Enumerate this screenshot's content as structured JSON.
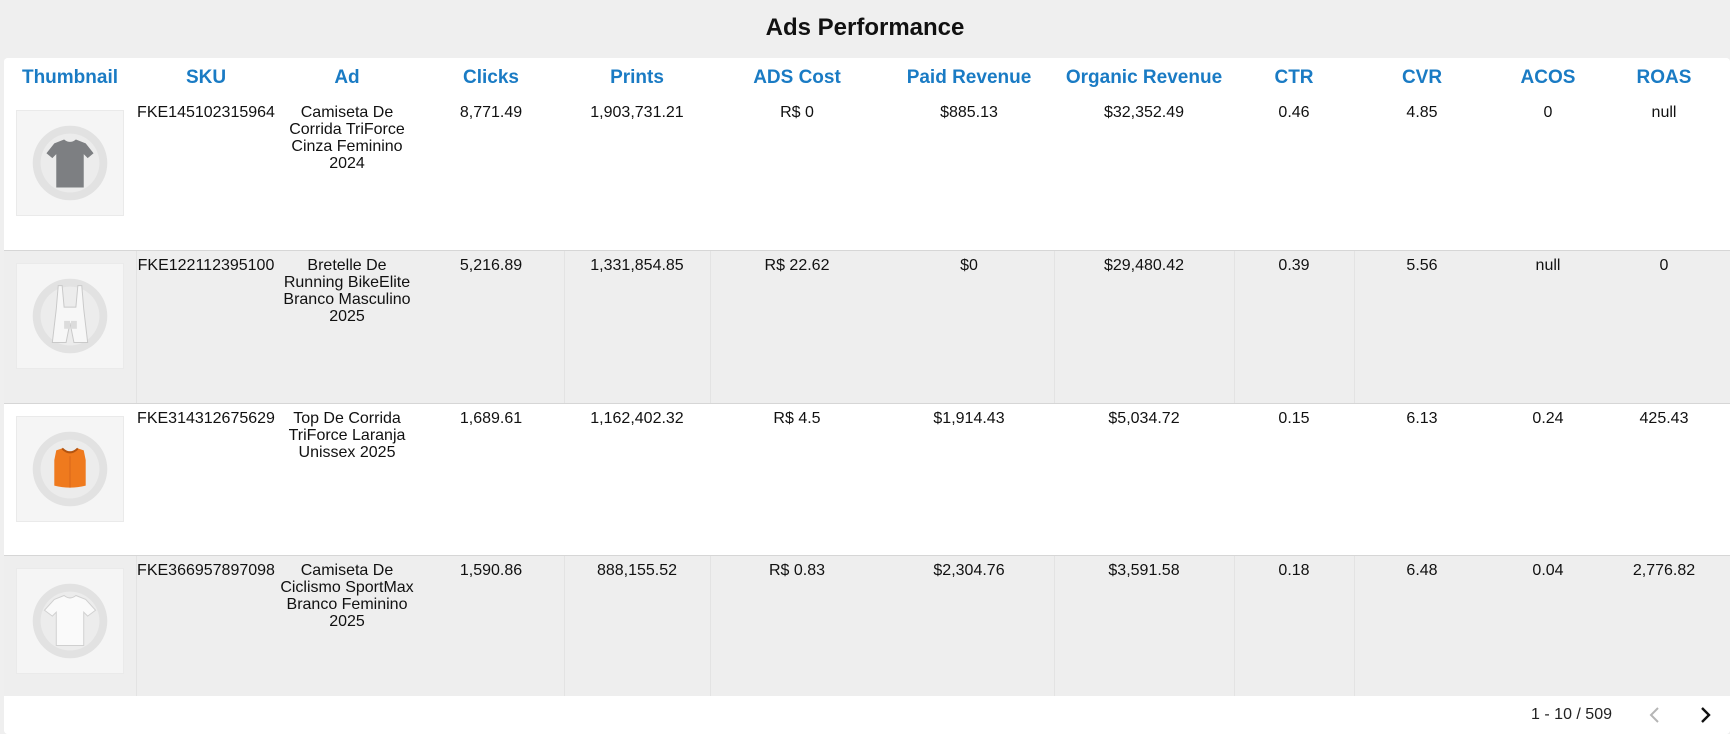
{
  "page": {
    "title": "Ads Performance"
  },
  "table": {
    "columns": [
      "Thumbnail",
      "SKU",
      "Ad",
      "Clicks",
      "Prints",
      "ADS Cost",
      "Paid Revenue",
      "Organic Revenue",
      "CTR",
      "CVR",
      "ACOS",
      "ROAS"
    ],
    "rows": [
      {
        "thumbnail": "gray-tshirt-icon",
        "sku": "FKE145102315964",
        "ad": "Camiseta De Corrida TriForce Cinza Feminino 2024",
        "clicks": "8,771.49",
        "prints": "1,903,731.21",
        "ads_cost": "R$ 0",
        "paid_revenue": "$885.13",
        "organic_revenue": "$32,352.49",
        "ctr": "0.46",
        "cvr": "4.85",
        "acos": "0",
        "roas": "null"
      },
      {
        "thumbnail": "white-bib-shorts-icon",
        "sku": "FKE122112395100",
        "ad": "Bretelle De Running BikeElite Branco Masculino 2025",
        "clicks": "5,216.89",
        "prints": "1,331,854.85",
        "ads_cost": "R$ 22.62",
        "paid_revenue": "$0",
        "organic_revenue": "$29,480.42",
        "ctr": "0.39",
        "cvr": "5.56",
        "acos": "null",
        "roas": "0"
      },
      {
        "thumbnail": "orange-top-icon",
        "sku": "FKE314312675629",
        "ad": "Top De Corrida TriForce Laranja Unissex 2025",
        "clicks": "1,689.61",
        "prints": "1,162,402.32",
        "ads_cost": "R$ 4.5",
        "paid_revenue": "$1,914.43",
        "organic_revenue": "$5,034.72",
        "ctr": "0.15",
        "cvr": "6.13",
        "acos": "0.24",
        "roas": "425.43"
      },
      {
        "thumbnail": "white-tshirt-icon",
        "sku": "FKE366957897098",
        "ad": "Camiseta De Ciclismo SportMax Branco Feminino 2025",
        "clicks": "1,590.86",
        "prints": "888,155.52",
        "ads_cost": "R$ 0.83",
        "paid_revenue": "$2,304.76",
        "organic_revenue": "$3,591.58",
        "ctr": "0.18",
        "cvr": "6.48",
        "acos": "0.04",
        "roas": "2,776.82"
      }
    ]
  },
  "pagination": {
    "range": "1 - 10 / 509",
    "prev_icon": "chevron-left-icon",
    "next_icon": "chevron-right-icon"
  },
  "colors": {
    "header_text": "#1a7bc4",
    "row_alt": "#eeeeee",
    "background": "#efefef"
  }
}
